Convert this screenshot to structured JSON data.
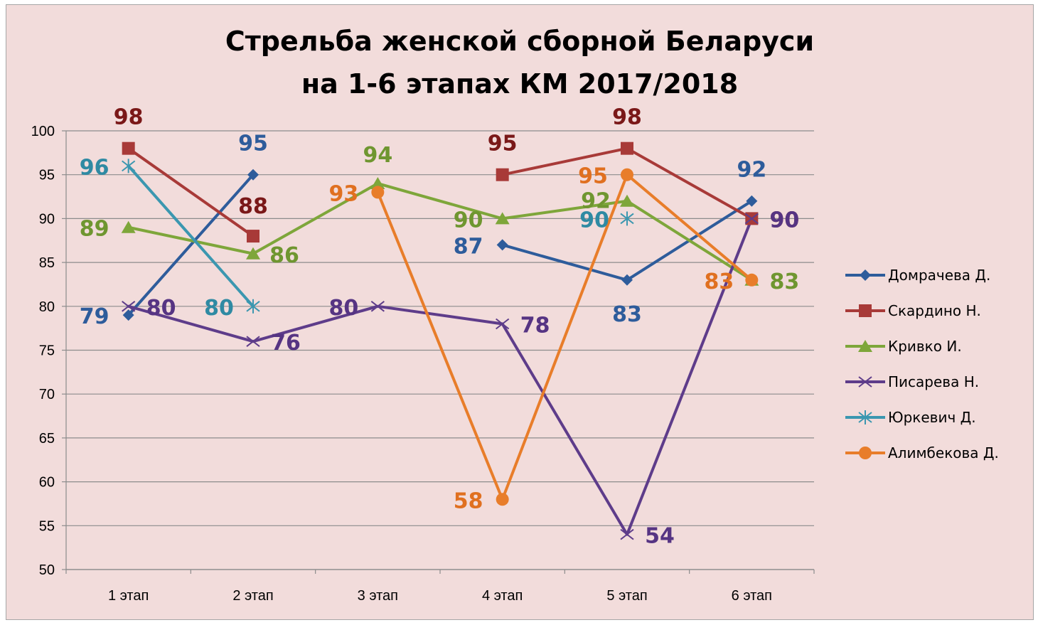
{
  "chart_data": {
    "type": "line",
    "title_line1": "Стрельба женской сборной Беларуси",
    "title_line2": "на 1-6 этапах КМ 2017/2018",
    "categories": [
      "1 этап",
      "2 этап",
      "3 этап",
      "4 этап",
      "5 этап",
      "6 этап"
    ],
    "ylim": [
      50,
      100
    ],
    "yticks": [
      50,
      55,
      60,
      65,
      70,
      75,
      80,
      85,
      90,
      95,
      100
    ],
    "grid": true,
    "legend_position": "right",
    "series": [
      {
        "name": "Домрачева Д.",
        "color": "#2e5c9b",
        "label_color": "#2e5c9b",
        "marker": "diamond",
        "values": [
          79,
          95,
          null,
          87,
          83,
          92
        ]
      },
      {
        "name": "Скардино Н.",
        "color": "#a83a38",
        "label_color": "#7a1818",
        "marker": "square",
        "values": [
          98,
          88,
          null,
          95,
          98,
          90
        ]
      },
      {
        "name": "Кривко И.",
        "color": "#7ea63a",
        "label_color": "#6f9630",
        "marker": "triangle",
        "values": [
          89,
          86,
          94,
          90,
          92,
          83
        ]
      },
      {
        "name": "Писарева Н.",
        "color": "#5e3c8a",
        "label_color": "#563483",
        "marker": "x",
        "values": [
          80,
          76,
          80,
          78,
          54,
          90
        ]
      },
      {
        "name": "Юркевич Д.",
        "color": "#3b97b0",
        "label_color": "#2f8aa3",
        "marker": "star",
        "values": [
          96,
          80,
          null,
          null,
          90,
          null
        ]
      },
      {
        "name": "Алимбекова Д.",
        "color": "#e87d2a",
        "label_color": "#e07020",
        "marker": "circle",
        "values": [
          null,
          null,
          93,
          58,
          95,
          83
        ]
      }
    ]
  }
}
